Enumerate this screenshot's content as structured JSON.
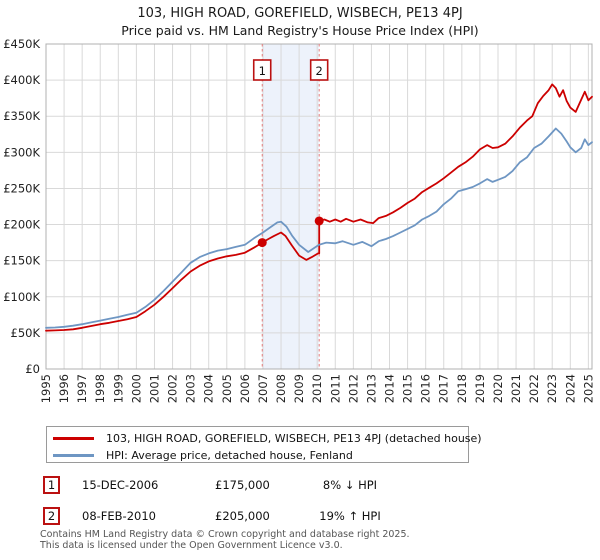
{
  "title": {
    "line1": "103, HIGH ROAD, GOREFIELD, WISBECH, PE13 4PJ",
    "line2": "Price paid vs. HM Land Registry's House Price Index (HPI)"
  },
  "chart_data": {
    "type": "line",
    "x_axis": {
      "min": 1995,
      "max": 2025.2,
      "years": [
        "1995",
        "1996",
        "1997",
        "1998",
        "1999",
        "2000",
        "2001",
        "2002",
        "2003",
        "2004",
        "2005",
        "2006",
        "2007",
        "2008",
        "2009",
        "2010",
        "2011",
        "2012",
        "2013",
        "2014",
        "2015",
        "2016",
        "2017",
        "2018",
        "2019",
        "2020",
        "2021",
        "2022",
        "2023",
        "2024",
        "2025"
      ]
    },
    "y_axis": {
      "max": 450,
      "tick_values": [
        0,
        50,
        100,
        150,
        200,
        250,
        300,
        350,
        400,
        450
      ],
      "tick_labels": [
        "£0",
        "£50K",
        "£100K",
        "£150K",
        "£200K",
        "£250K",
        "£300K",
        "£350K",
        "£400K",
        "£450K"
      ],
      "unit": "GBP thousands"
    },
    "grid_color": "#d9d9d9",
    "border_color": "#b0b0b0",
    "highlight_band": {
      "from": 2006.96,
      "to": 2010.11,
      "color": "#edf2fb"
    },
    "series": [
      {
        "name": "103, HIGH ROAD, GOREFIELD, WISBECH, PE13 4PJ (detached house)",
        "color": "#cc0000",
        "points": [
          [
            1995,
            53
          ],
          [
            1995.5,
            53.5
          ],
          [
            1996,
            54
          ],
          [
            1996.5,
            55
          ],
          [
            1997,
            57
          ],
          [
            1997.5,
            59.5
          ],
          [
            1998,
            62
          ],
          [
            1998.5,
            64
          ],
          [
            1999,
            66.5
          ],
          [
            1999.5,
            69
          ],
          [
            2000,
            72
          ],
          [
            2000.5,
            80
          ],
          [
            2001,
            89
          ],
          [
            2001.5,
            100
          ],
          [
            2002,
            112
          ],
          [
            2002.5,
            124
          ],
          [
            2003,
            135
          ],
          [
            2003.5,
            143
          ],
          [
            2004,
            149
          ],
          [
            2004.5,
            153
          ],
          [
            2005,
            156
          ],
          [
            2005.5,
            158
          ],
          [
            2006,
            161
          ],
          [
            2006.5,
            168
          ],
          [
            2006.96,
            175
          ],
          [
            2007.3,
            180
          ],
          [
            2007.6,
            184
          ],
          [
            2008,
            189
          ],
          [
            2008.25,
            184
          ],
          [
            2008.6,
            171
          ],
          [
            2009,
            157
          ],
          [
            2009.4,
            151
          ],
          [
            2009.7,
            155
          ],
          [
            2010.05,
            160
          ],
          [
            2010.11,
            160
          ],
          [
            2010.11,
            205
          ],
          [
            2010.4,
            207
          ],
          [
            2010.7,
            204
          ],
          [
            2011,
            207
          ],
          [
            2011.3,
            204
          ],
          [
            2011.6,
            208
          ],
          [
            2012,
            204
          ],
          [
            2012.4,
            207
          ],
          [
            2012.8,
            203
          ],
          [
            2013.1,
            202
          ],
          [
            2013.4,
            209
          ],
          [
            2013.8,
            212
          ],
          [
            2014.2,
            217
          ],
          [
            2014.6,
            223
          ],
          [
            2015,
            230
          ],
          [
            2015.4,
            236
          ],
          [
            2015.8,
            245
          ],
          [
            2016.2,
            251
          ],
          [
            2016.6,
            257
          ],
          [
            2017,
            264
          ],
          [
            2017.4,
            272
          ],
          [
            2017.8,
            280
          ],
          [
            2018.2,
            286
          ],
          [
            2018.6,
            294
          ],
          [
            2019,
            304
          ],
          [
            2019.4,
            310
          ],
          [
            2019.7,
            306
          ],
          [
            2020,
            307
          ],
          [
            2020.4,
            312
          ],
          [
            2020.8,
            322
          ],
          [
            2021.2,
            334
          ],
          [
            2021.6,
            344
          ],
          [
            2021.9,
            350
          ],
          [
            2022.2,
            368
          ],
          [
            2022.5,
            378
          ],
          [
            2022.8,
            386
          ],
          [
            2023,
            394
          ],
          [
            2023.2,
            389
          ],
          [
            2023.4,
            377
          ],
          [
            2023.6,
            386
          ],
          [
            2023.8,
            371
          ],
          [
            2024,
            362
          ],
          [
            2024.3,
            356
          ],
          [
            2024.5,
            367
          ],
          [
            2024.8,
            384
          ],
          [
            2025,
            372
          ],
          [
            2025.2,
            377
          ]
        ]
      },
      {
        "name": "HPI: Average price, detached house, Fenland",
        "color": "#6e96c3",
        "points": [
          [
            1995,
            57
          ],
          [
            1995.5,
            57.5
          ],
          [
            1996,
            58.5
          ],
          [
            1996.5,
            60
          ],
          [
            1997,
            62
          ],
          [
            1997.5,
            64.5
          ],
          [
            1998,
            67
          ],
          [
            1998.5,
            69.5
          ],
          [
            1999,
            72
          ],
          [
            1999.5,
            75
          ],
          [
            2000,
            78
          ],
          [
            2000.5,
            86
          ],
          [
            2001,
            96
          ],
          [
            2001.5,
            108
          ],
          [
            2002,
            121
          ],
          [
            2002.5,
            134
          ],
          [
            2003,
            147
          ],
          [
            2003.5,
            155
          ],
          [
            2004,
            160
          ],
          [
            2004.5,
            164
          ],
          [
            2005,
            166
          ],
          [
            2005.5,
            169
          ],
          [
            2006,
            172
          ],
          [
            2006.5,
            181
          ],
          [
            2007,
            189
          ],
          [
            2007.4,
            196
          ],
          [
            2007.8,
            203
          ],
          [
            2008,
            204
          ],
          [
            2008.3,
            197
          ],
          [
            2008.6,
            185
          ],
          [
            2009,
            172
          ],
          [
            2009.5,
            162
          ],
          [
            2009.8,
            167
          ],
          [
            2010.1,
            172
          ],
          [
            2010.5,
            175
          ],
          [
            2011,
            174
          ],
          [
            2011.4,
            177
          ],
          [
            2012,
            172
          ],
          [
            2012.5,
            176
          ],
          [
            2013,
            170
          ],
          [
            2013.4,
            177
          ],
          [
            2013.8,
            180
          ],
          [
            2014.2,
            184
          ],
          [
            2014.6,
            189
          ],
          [
            2015,
            194
          ],
          [
            2015.4,
            199
          ],
          [
            2015.8,
            207
          ],
          [
            2016.2,
            212
          ],
          [
            2016.6,
            218
          ],
          [
            2017,
            228
          ],
          [
            2017.4,
            236
          ],
          [
            2017.8,
            246
          ],
          [
            2018.2,
            249
          ],
          [
            2018.6,
            252
          ],
          [
            2019,
            257
          ],
          [
            2019.4,
            263
          ],
          [
            2019.7,
            259
          ],
          [
            2020,
            262
          ],
          [
            2020.4,
            266
          ],
          [
            2020.8,
            274
          ],
          [
            2021.2,
            286
          ],
          [
            2021.6,
            293
          ],
          [
            2022,
            306
          ],
          [
            2022.4,
            312
          ],
          [
            2022.8,
            322
          ],
          [
            2023.2,
            333
          ],
          [
            2023.5,
            326
          ],
          [
            2023.8,
            315
          ],
          [
            2024,
            307
          ],
          [
            2024.3,
            300
          ],
          [
            2024.6,
            306
          ],
          [
            2024.8,
            318
          ],
          [
            2025,
            310
          ],
          [
            2025.2,
            314
          ]
        ]
      }
    ],
    "sale_markers": [
      {
        "label": "1",
        "year": 2006.96,
        "value": 175,
        "line_color": "#e57d7d",
        "dot_color": "#cc0000"
      },
      {
        "label": "2",
        "year": 2010.11,
        "value": 205,
        "line_color": "#e57d7d",
        "dot_color": "#cc0000"
      }
    ]
  },
  "legend": {
    "items": [
      {
        "swatch_color": "#cc0000",
        "label": "103, HIGH ROAD, GOREFIELD, WISBECH, PE13 4PJ (detached house)"
      },
      {
        "swatch_color": "#6e96c3",
        "label": "HPI: Average price, detached house, Fenland"
      }
    ]
  },
  "transactions": [
    {
      "num": "1",
      "date": "15-DEC-2006",
      "price": "£175,000",
      "hpi_delta": "8% ↓ HPI"
    },
    {
      "num": "2",
      "date": "08-FEB-2010",
      "price": "£205,000",
      "hpi_delta": "19% ↑ HPI"
    }
  ],
  "footer": {
    "line1": "Contains HM Land Registry data © Crown copyright and database right 2025.",
    "line2": "This data is licensed under the Open Government Licence v3.0."
  }
}
